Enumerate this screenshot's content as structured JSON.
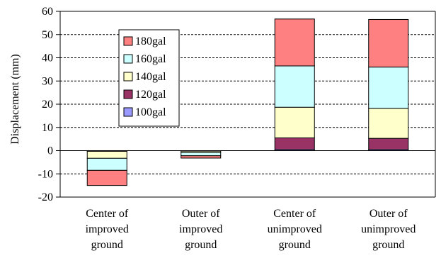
{
  "chart_data": {
    "type": "bar",
    "stacked": true,
    "categories": [
      [
        "Center of",
        "improved",
        "ground"
      ],
      [
        "Outer of",
        "improved",
        "ground"
      ],
      [
        "Center of",
        "unimproved",
        "ground"
      ],
      [
        "Outer of",
        "unimproved",
        "ground"
      ]
    ],
    "ylabel": "Displacement (mm)",
    "ylim": [
      -20,
      60
    ],
    "yticks": [
      -20,
      -10,
      0,
      10,
      20,
      30,
      40,
      50,
      60
    ],
    "ytick_labels": [
      "-20",
      "-10",
      "0",
      "10",
      "20",
      "30",
      "40",
      "50",
      "60"
    ],
    "grid": true,
    "legend_placement": "top-left",
    "legend_order": [
      "180gal",
      "160gal",
      "140gal",
      "120gal",
      "100gal"
    ],
    "series": [
      {
        "name": "100gal",
        "color": "#9999ff",
        "values": [
          0,
          0,
          0.5,
          0.5
        ]
      },
      {
        "name": "120gal",
        "color": "#993366",
        "values": [
          -0.3,
          -0.2,
          5.0,
          4.8
        ]
      },
      {
        "name": "140gal",
        "color": "#ffffcc",
        "values": [
          -3.0,
          -0.6,
          13.2,
          12.9
        ]
      },
      {
        "name": "160gal",
        "color": "#ccffff",
        "values": [
          -5.2,
          -1.4,
          17.8,
          17.8
        ]
      },
      {
        "name": "180gal",
        "color": "#ff8080",
        "values": [
          -6.5,
          -1.0,
          20.2,
          20.5
        ]
      }
    ]
  }
}
